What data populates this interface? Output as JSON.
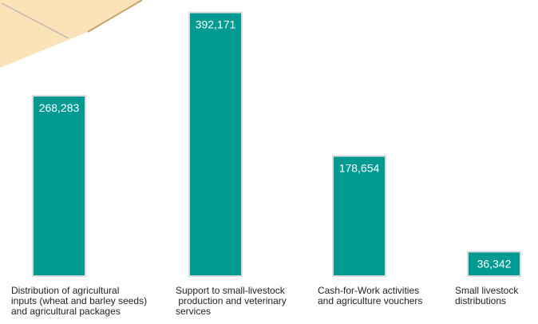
{
  "chart_data": {
    "type": "bar",
    "categories": [
      "Distribution of agricultural inputs (wheat and barley seeds) and agricultural packages",
      "Support to small-livestock production and veterinary services",
      "Cash-for-Work activities and agriculture vouchers",
      "Small livestock distributions"
    ],
    "category_lines": [
      [
        "Distribution of agricultural",
        "inputs (wheat and barley seeds)",
        "and agricultural packages"
      ],
      [
        "Support to small-livestock",
        " production and veterinary",
        "services"
      ],
      [
        "Cash-for-Work activities",
        "and agriculture vouchers"
      ],
      [
        "Small livestock",
        "distributions"
      ]
    ],
    "values": [
      268283,
      392171,
      178654,
      36342
    ],
    "value_labels": [
      "268,283",
      "392,171",
      "178,654",
      "36,342"
    ],
    "ylim": [
      0,
      400000
    ],
    "grid": false,
    "legend": "none",
    "colors": {
      "bar": "#009A93",
      "bar_edge": "#dcdcdc",
      "corner_fill": "#FBE2B8",
      "corner_edge": "#C9A26C"
    }
  }
}
